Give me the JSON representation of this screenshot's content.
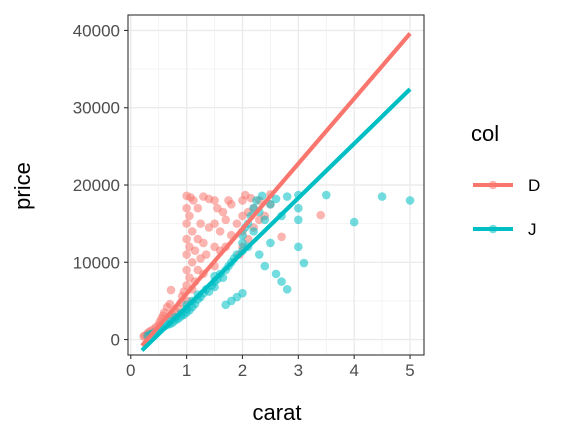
{
  "chart_data": {
    "type": "scatter",
    "xlabel": "carat",
    "ylabel": "price",
    "xlim": [
      -0.05,
      5.25
    ],
    "ylim": [
      -2000,
      42000
    ],
    "x_ticks": [
      0,
      1,
      2,
      3,
      4,
      5
    ],
    "x_tick_labels": [
      "0",
      "1",
      "2",
      "3",
      "4",
      "5"
    ],
    "y_ticks": [
      0,
      10000,
      20000,
      30000,
      40000
    ],
    "y_tick_labels": [
      "0",
      "10000",
      "20000",
      "30000",
      "40000"
    ],
    "grid": true,
    "legend": {
      "title": "col",
      "position": "right"
    },
    "series": [
      {
        "name": "D",
        "color": "#F8766D",
        "fit_line": {
          "x": [
            0.2,
            5.0
          ],
          "y": [
            -800,
            39600
          ]
        },
        "points": [
          [
            0.23,
            400
          ],
          [
            0.25,
            520
          ],
          [
            0.3,
            650
          ],
          [
            0.31,
            900
          ],
          [
            0.35,
            1100
          ],
          [
            0.4,
            1300
          ],
          [
            0.45,
            1600
          ],
          [
            0.5,
            1900
          ],
          [
            0.52,
            2300
          ],
          [
            0.55,
            2700
          ],
          [
            0.58,
            3100
          ],
          [
            0.6,
            3500
          ],
          [
            0.65,
            4200
          ],
          [
            0.7,
            2800
          ],
          [
            0.7,
            4600
          ],
          [
            0.72,
            6400
          ],
          [
            0.75,
            3200
          ],
          [
            0.8,
            3600
          ],
          [
            0.85,
            4100
          ],
          [
            0.9,
            4800
          ],
          [
            0.92,
            5600
          ],
          [
            0.95,
            6200
          ],
          [
            1.0,
            7000
          ],
          [
            1.0,
            9000
          ],
          [
            1.0,
            11000
          ],
          [
            1.0,
            13000
          ],
          [
            1.0,
            15000
          ],
          [
            1.0,
            17000
          ],
          [
            1.0,
            18600
          ],
          [
            1.02,
            5000
          ],
          [
            1.05,
            8000
          ],
          [
            1.05,
            12000
          ],
          [
            1.05,
            16000
          ],
          [
            1.07,
            18400
          ],
          [
            1.1,
            6500
          ],
          [
            1.1,
            10000
          ],
          [
            1.1,
            14000
          ],
          [
            1.12,
            18000
          ],
          [
            1.15,
            7500
          ],
          [
            1.15,
            11500
          ],
          [
            1.2,
            9000
          ],
          [
            1.2,
            13000
          ],
          [
            1.2,
            17000
          ],
          [
            1.25,
            10500
          ],
          [
            1.25,
            15000
          ],
          [
            1.3,
            8500
          ],
          [
            1.3,
            12500
          ],
          [
            1.3,
            18500
          ],
          [
            1.35,
            11000
          ],
          [
            1.4,
            14500
          ],
          [
            1.4,
            18200
          ],
          [
            1.5,
            9500
          ],
          [
            1.5,
            12000
          ],
          [
            1.5,
            15000
          ],
          [
            1.5,
            18000
          ],
          [
            1.55,
            17000
          ],
          [
            1.6,
            11500
          ],
          [
            1.6,
            14000
          ],
          [
            1.65,
            16500
          ],
          [
            1.7,
            12000
          ],
          [
            1.7,
            15500
          ],
          [
            1.75,
            18000
          ],
          [
            1.8,
            13500
          ],
          [
            1.8,
            17500
          ],
          [
            1.9,
            15000
          ],
          [
            1.95,
            11000
          ],
          [
            2.0,
            12000
          ],
          [
            2.0,
            14000
          ],
          [
            2.0,
            16000
          ],
          [
            2.0,
            18000
          ],
          [
            2.05,
            18700
          ],
          [
            2.1,
            13000
          ],
          [
            2.1,
            16500
          ],
          [
            2.15,
            18300
          ],
          [
            2.2,
            14500
          ],
          [
            2.2,
            17000
          ],
          [
            2.3,
            15500
          ],
          [
            2.3,
            18000
          ],
          [
            2.4,
            16000
          ],
          [
            2.5,
            17500
          ],
          [
            2.5,
            18800
          ],
          [
            2.7,
            13300
          ],
          [
            3.4,
            16100
          ]
        ]
      },
      {
        "name": "J",
        "color": "#00BFC4",
        "fit_line": {
          "x": [
            0.2,
            5.0
          ],
          "y": [
            -1400,
            32400
          ]
        },
        "points": [
          [
            0.3,
            500
          ],
          [
            0.35,
            700
          ],
          [
            0.4,
            800
          ],
          [
            0.45,
            1000
          ],
          [
            0.5,
            1300
          ],
          [
            0.55,
            1500
          ],
          [
            0.6,
            1700
          ],
          [
            0.65,
            1900
          ],
          [
            0.7,
            2000
          ],
          [
            0.7,
            2400
          ],
          [
            0.75,
            2200
          ],
          [
            0.8,
            2500
          ],
          [
            0.8,
            2900
          ],
          [
            0.85,
            2700
          ],
          [
            0.9,
            3000
          ],
          [
            0.9,
            3400
          ],
          [
            0.95,
            3200
          ],
          [
            1.0,
            3500
          ],
          [
            1.0,
            4000
          ],
          [
            1.0,
            4500
          ],
          [
            1.05,
            3800
          ],
          [
            1.1,
            4200
          ],
          [
            1.1,
            5000
          ],
          [
            1.15,
            4600
          ],
          [
            1.2,
            5200
          ],
          [
            1.2,
            5800
          ],
          [
            1.25,
            5500
          ],
          [
            1.3,
            6000
          ],
          [
            1.35,
            6500
          ],
          [
            1.4,
            6200
          ],
          [
            1.45,
            7000
          ],
          [
            1.5,
            6800
          ],
          [
            1.5,
            7500
          ],
          [
            1.5,
            8200
          ],
          [
            1.55,
            7800
          ],
          [
            1.6,
            8500
          ],
          [
            1.65,
            8000
          ],
          [
            1.7,
            9000
          ],
          [
            1.7,
            4500
          ],
          [
            1.75,
            9500
          ],
          [
            1.8,
            10000
          ],
          [
            1.8,
            5000
          ],
          [
            1.85,
            10500
          ],
          [
            1.9,
            11000
          ],
          [
            1.9,
            5500
          ],
          [
            2.0,
            11500
          ],
          [
            2.0,
            12500
          ],
          [
            2.0,
            13500
          ],
          [
            2.0,
            6000
          ],
          [
            2.05,
            14500
          ],
          [
            2.1,
            15000
          ],
          [
            2.1,
            12000
          ],
          [
            2.15,
            16000
          ],
          [
            2.2,
            17000
          ],
          [
            2.2,
            14000
          ],
          [
            2.25,
            18000
          ],
          [
            2.3,
            16500
          ],
          [
            2.3,
            11000
          ],
          [
            2.35,
            18600
          ],
          [
            2.4,
            15500
          ],
          [
            2.4,
            9500
          ],
          [
            2.5,
            17500
          ],
          [
            2.5,
            12500
          ],
          [
            2.6,
            18200
          ],
          [
            2.6,
            8500
          ],
          [
            2.7,
            16000
          ],
          [
            2.7,
            7500
          ],
          [
            2.8,
            18500
          ],
          [
            2.8,
            6500
          ],
          [
            3.0,
            17000
          ],
          [
            3.0,
            15500
          ],
          [
            3.0,
            12000
          ],
          [
            3.0,
            18700
          ],
          [
            3.1,
            9900
          ],
          [
            3.5,
            18700
          ],
          [
            4.0,
            15200
          ],
          [
            4.5,
            18500
          ],
          [
            5.0,
            18000
          ]
        ]
      }
    ]
  }
}
